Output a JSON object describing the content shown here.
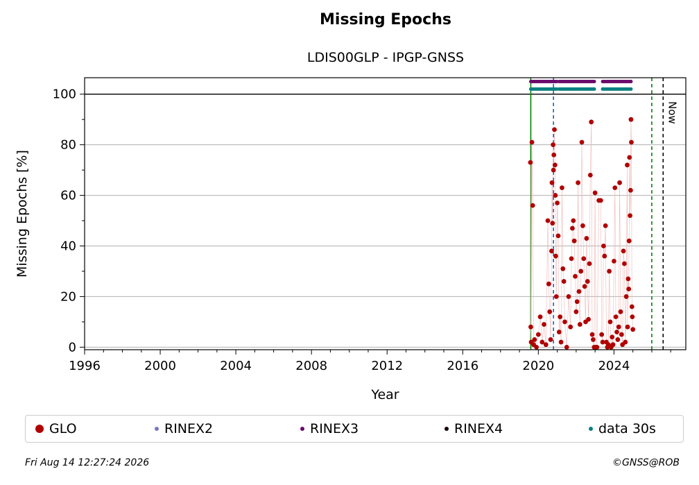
{
  "chart_data": {
    "type": "scatter",
    "title": "Missing Epochs",
    "subtitle": "LDIS00GLP - IPGP-GNSS",
    "xlabel": "Year",
    "ylabel": "Missing Epochs [%]",
    "xlim": [
      1996,
      2027.8
    ],
    "ylim": [
      -1,
      106.5
    ],
    "xticks": [
      1996,
      2000,
      2004,
      2008,
      2012,
      2016,
      2020,
      2024
    ],
    "yticks": [
      0,
      20,
      40,
      60,
      80,
      100
    ],
    "grid": "horizontal",
    "reference_line": 100,
    "vertical_markers": [
      {
        "x": 2019.6,
        "color": "#008000",
        "style": "solid"
      },
      {
        "x": 2020.8,
        "color": "#1f5fbf",
        "style": "dashed"
      },
      {
        "x": 2026.0,
        "color": "#008000",
        "style": "dashed"
      },
      {
        "x": 2026.6,
        "color": "#000000",
        "style": "dashed",
        "label": "Now"
      }
    ],
    "availability_bands": [
      {
        "name": "RINEX3",
        "y": 105,
        "color": "#6b0a6b",
        "ranges": [
          [
            2019.6,
            2021.0
          ],
          [
            2021.1,
            2023.0
          ],
          [
            2023.4,
            2024.9
          ]
        ]
      },
      {
        "name": "data 30s",
        "y": 102,
        "color": "#0a7f7f",
        "ranges": [
          [
            2019.6,
            2021.0
          ],
          [
            2021.1,
            2023.0
          ],
          [
            2023.4,
            2024.9
          ]
        ]
      }
    ],
    "series": [
      {
        "name": "GLO",
        "color": "#b00000",
        "x": [
          2019.58,
          2019.6,
          2019.62,
          2019.66,
          2019.7,
          2019.75,
          2019.8,
          2019.9,
          2020.0,
          2020.1,
          2020.2,
          2020.3,
          2020.4,
          2020.5,
          2020.55,
          2020.6,
          2020.65,
          2020.7,
          2020.72,
          2020.75,
          2020.78,
          2020.8,
          2020.82,
          2020.85,
          2020.88,
          2020.9,
          2020.92,
          2020.95,
          2021.0,
          2021.05,
          2021.1,
          2021.15,
          2021.2,
          2021.25,
          2021.3,
          2021.35,
          2021.4,
          2021.5,
          2021.6,
          2021.7,
          2021.75,
          2021.8,
          2021.85,
          2021.9,
          2021.95,
          2022.0,
          2022.05,
          2022.1,
          2022.15,
          2022.2,
          2022.25,
          2022.3,
          2022.35,
          2022.4,
          2022.45,
          2022.5,
          2022.55,
          2022.6,
          2022.65,
          2022.7,
          2022.75,
          2022.8,
          2022.85,
          2022.9,
          2022.95,
          2023.0,
          2023.05,
          2023.1,
          2023.2,
          2023.3,
          2023.35,
          2023.4,
          2023.45,
          2023.5,
          2023.55,
          2023.6,
          2023.65,
          2023.7,
          2023.75,
          2023.8,
          2023.85,
          2023.9,
          2023.95,
          2024.0,
          2024.05,
          2024.1,
          2024.15,
          2024.2,
          2024.25,
          2024.3,
          2024.35,
          2024.4,
          2024.45,
          2024.5,
          2024.55,
          2024.6,
          2024.65,
          2024.7,
          2024.72,
          2024.75,
          2024.78,
          2024.8,
          2024.82,
          2024.85,
          2024.88,
          2024.9,
          2024.92,
          2024.95,
          2024.97,
          2025.0
        ],
        "values": [
          73,
          8,
          2,
          81,
          56,
          1,
          3,
          0,
          5,
          12,
          2,
          9,
          1,
          50,
          25,
          14,
          3,
          38,
          65,
          49,
          80,
          70,
          76,
          86,
          72,
          60,
          36,
          20,
          57,
          44,
          6,
          12,
          2,
          63,
          31,
          26,
          10,
          0,
          20,
          8,
          35,
          47,
          50,
          42,
          28,
          14,
          18,
          65,
          22,
          9,
          30,
          81,
          48,
          35,
          24,
          10,
          43,
          26,
          11,
          33,
          68,
          89,
          5,
          3,
          0,
          61,
          0,
          0,
          58,
          58,
          5,
          2,
          40,
          36,
          48,
          2,
          0,
          1,
          30,
          10,
          0,
          4,
          1,
          34,
          63,
          12,
          6,
          3,
          8,
          65,
          14,
          5,
          1,
          38,
          33,
          2,
          20,
          72,
          8,
          27,
          23,
          42,
          75,
          52,
          62,
          90,
          81,
          16,
          12,
          7
        ]
      },
      {
        "name": "RINEX2",
        "color": "#7a7ac0",
        "x": [],
        "values": []
      },
      {
        "name": "RINEX3",
        "color": "#6b0a6b",
        "x": [],
        "values": []
      },
      {
        "name": "RINEX4",
        "color": "#1a0010",
        "x": [],
        "values": []
      },
      {
        "name": "data 30s",
        "color": "#0a7f7f",
        "x": [],
        "values": []
      }
    ]
  },
  "footer": {
    "date": "Fri Aug 14 12:27:24 2026",
    "credit": "©GNSS@ROB"
  }
}
